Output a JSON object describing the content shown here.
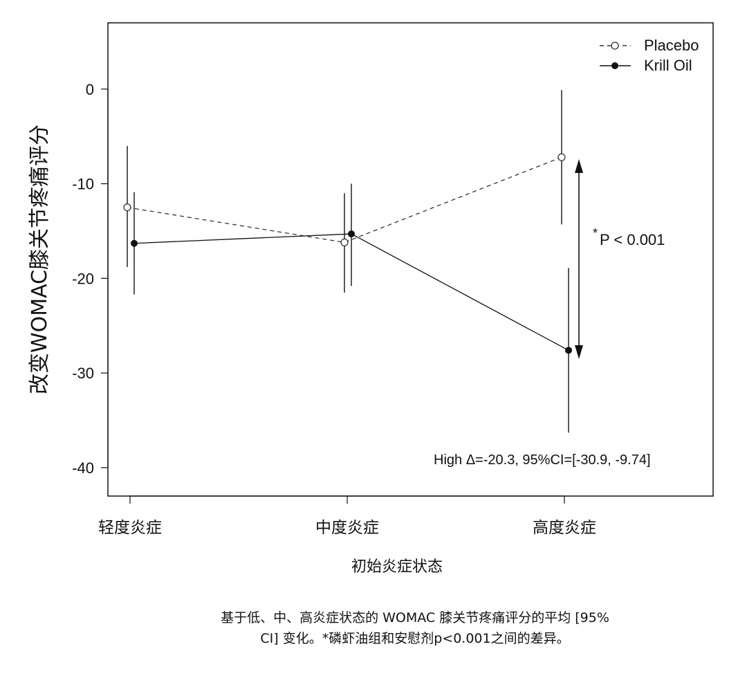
{
  "chart_data": {
    "type": "line",
    "ylabel": "改变WOMAC膝关节疼痛评分",
    "xlabel": "初始炎症状态",
    "categories": [
      "轻度炎症",
      "中度炎症",
      "高度炎症"
    ],
    "ylim": [
      -43,
      7
    ],
    "yticks": [
      0,
      -10,
      -20,
      -30,
      -40
    ],
    "grid": false,
    "legend_position": "top-right",
    "series": [
      {
        "name": "Placebo",
        "line_style": "dashed",
        "marker": "open-circle",
        "color": "#333333",
        "values": [
          -12.5,
          -16.2,
          -7.2
        ],
        "ci_low": [
          -18.8,
          -21.5,
          -14.3
        ],
        "ci_high": [
          -6.0,
          -11.0,
          -0.1
        ]
      },
      {
        "name": "Krill Oil",
        "line_style": "solid",
        "marker": "filled-circle",
        "color": "#111111",
        "values": [
          -16.3,
          -15.3,
          -27.6
        ],
        "ci_low": [
          -21.7,
          -20.8,
          -36.3
        ],
        "ci_high": [
          -10.9,
          -10.0,
          -18.9
        ]
      }
    ],
    "annotations": {
      "significance_star": "*",
      "significance_text": "P < 0.001",
      "difference_text": "High Δ=-20.3, 95%CI=[-30.9, -9.74]"
    }
  },
  "caption": {
    "line1": "基于低、中、高炎症状态的 WOMAC 膝关节疼痛评分的平均 [95%",
    "line2": "CI] 变化。*磷虾油组和安慰剂p<0.001之间的差异。"
  }
}
